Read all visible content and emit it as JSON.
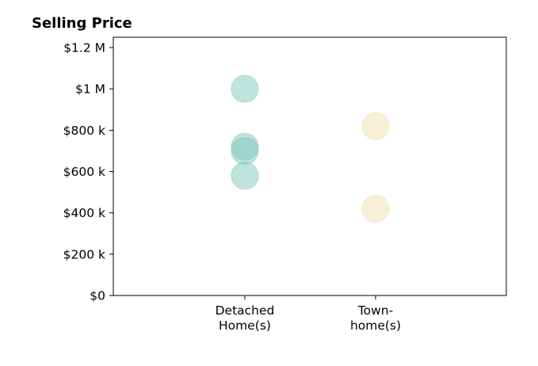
{
  "chart_data": {
    "type": "scatter",
    "title": "Selling Price",
    "xlabel": "",
    "ylabel": "",
    "categories": [
      [
        "Detached",
        "Home(s)"
      ],
      [
        "Town-",
        "home(s)"
      ]
    ],
    "ylim": [
      0,
      1250000
    ],
    "yticks": [
      0,
      200000,
      400000,
      600000,
      800000,
      1000000,
      1200000
    ],
    "ytick_labels": [
      "$0",
      "$200 k",
      "$400 k",
      "$600 k",
      "$800 k",
      "$1 M",
      "$1.2 M"
    ],
    "series": [
      {
        "category_index": 0,
        "color": "#80c8bc",
        "values": [
          1000000,
          720000,
          700000,
          580000
        ]
      },
      {
        "category_index": 1,
        "color": "#f2dfb1",
        "values": [
          820000,
          420000
        ]
      }
    ],
    "grid": false,
    "legend": "none"
  }
}
